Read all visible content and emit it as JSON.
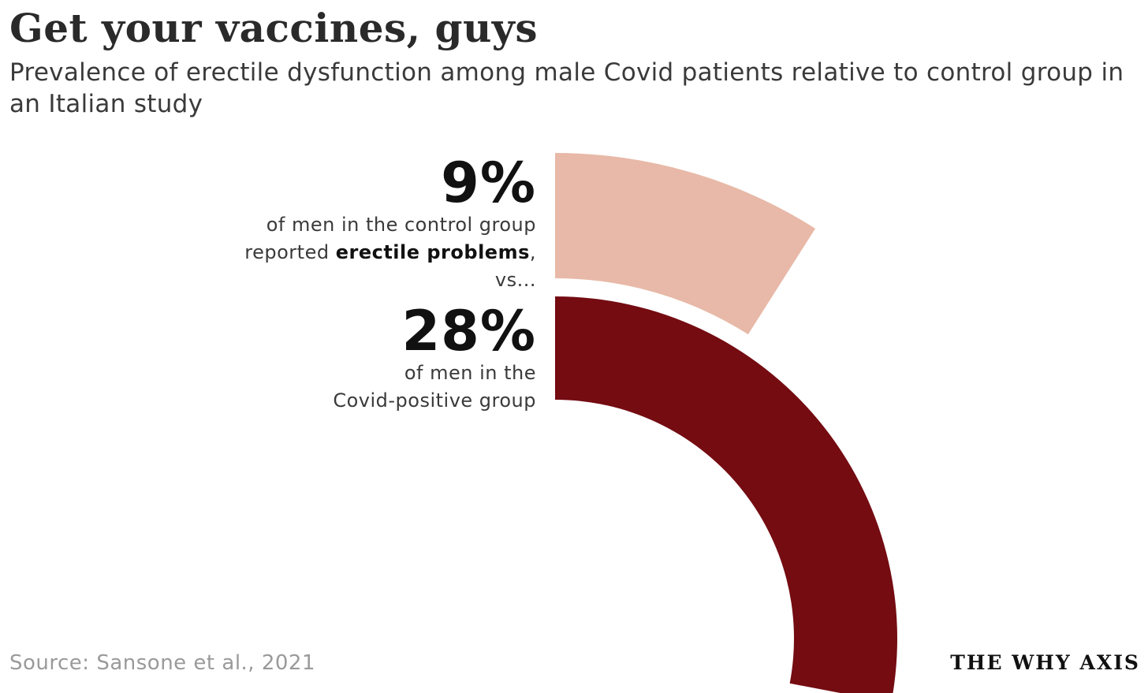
{
  "title": "Get your vaccines, guys",
  "subtitle": "Prevalence of erectile dysfunction among male Covid patients relative to control group in an Italian study",
  "chart_data": {
    "type": "radial-bar",
    "unit": "%",
    "series": [
      {
        "name": "control group",
        "value": 9,
        "color": "#e8b9a8"
      },
      {
        "name": "Covid-positive group",
        "value": 28,
        "color": "#740c12"
      }
    ]
  },
  "annotations": {
    "control_value": "9%",
    "control_line1": "of men in the control group",
    "control_line2_prefix": "reported ",
    "control_line2_bold": "erectile problems",
    "control_line2_suffix": ",",
    "control_line3": "vs...",
    "covid_value": "28%",
    "covid_line1": "of men in the",
    "covid_line2": "Covid-positive group"
  },
  "source": "Source: Sansone et al., 2021",
  "brand": "THE WHY AXIS"
}
